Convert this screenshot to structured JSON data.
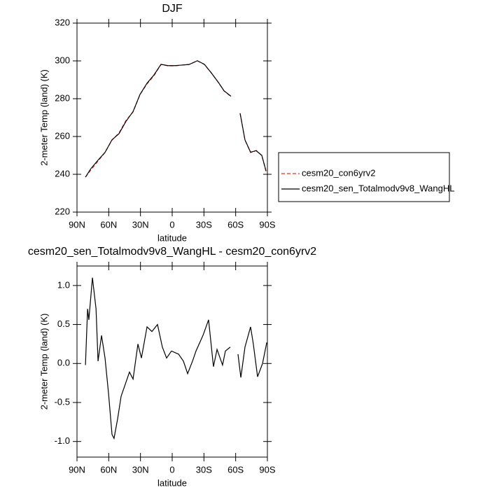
{
  "chart_data": [
    {
      "type": "line",
      "title": "DJF",
      "xlabel": "latitude",
      "ylabel": "2-meter Temp (land) (K)",
      "x": [
        82,
        77,
        70.1,
        63.5,
        57,
        50.3,
        43.7,
        37,
        30.4,
        23.8,
        17.2,
        10.6,
        4,
        -2.7,
        -9.3,
        -15.9,
        -23.8,
        -30.4,
        -37,
        -43.7,
        -49,
        -55.6,
        -60,
        -64.2,
        -68.8,
        -74.1,
        -79.4,
        -84.7,
        -88.7
      ],
      "series": [
        {
          "name": "cesm20_con6yrv2",
          "color": "#e0302a",
          "line_style": "dashed",
          "values": [
            238.5,
            242.2,
            247,
            251.5,
            258,
            261.9,
            268.5,
            273,
            282.2,
            287.8,
            292.2,
            298.1,
            297.4,
            297.4,
            297.8,
            298.1,
            300,
            298.1,
            293.7,
            288.5,
            284.1,
            281.1,
            null,
            272.2,
            258.1,
            251.5,
            252.6,
            250,
            241.5
          ]
        },
        {
          "name": "cesm20_sen_Totalmodv9v8_WangHL",
          "color": "#000000",
          "line_style": "solid",
          "values": [
            238.5,
            242.9,
            247.5,
            251.6,
            258.2,
            261.5,
            268,
            273.2,
            282.3,
            288.2,
            292.6,
            298.2,
            297.5,
            297.5,
            297.8,
            298.1,
            300.1,
            298.2,
            293.6,
            288.6,
            284.2,
            281.3,
            null,
            272.3,
            258.2,
            251.7,
            252.5,
            250,
            241.8
          ]
        }
      ],
      "xlim": [
        90,
        -90
      ],
      "xticks": [
        {
          "value": 90,
          "label": "90N"
        },
        {
          "value": 60,
          "label": "60N"
        },
        {
          "value": 30,
          "label": "30N"
        },
        0,
        {
          "value": -30,
          "label": "30S"
        },
        {
          "value": -60,
          "label": "60S"
        },
        {
          "value": -90,
          "label": "90S"
        }
      ],
      "ylim": [
        220,
        320
      ],
      "yticks": [
        220,
        240,
        260,
        280,
        300,
        320
      ],
      "legend": "right"
    },
    {
      "type": "line",
      "title": "cesm20_sen_Totalmodv9v8_WangHL - cesm20_con6yrv2",
      "xlabel": "latitude",
      "ylabel": "2-meter Temp (land) (K)",
      "x": [
        82,
        80,
        78.8,
        75.4,
        72,
        70.1,
        66.8,
        63.5,
        60.2,
        56.9,
        55,
        51.6,
        48.3,
        43.7,
        40.4,
        37,
        32.4,
        29.1,
        23.8,
        19.2,
        13.9,
        9.3,
        5.3,
        0.7,
        -6,
        -10.6,
        -14.6,
        -19.2,
        -22.5,
        -29.1,
        -34.4,
        -39,
        -42.4,
        -47.6,
        -50.3,
        -54.9,
        -59,
        -62.2,
        -64.9,
        -68.8,
        -74.1,
        -76.7,
        -80.7,
        -85.4,
        -89.4
      ],
      "series": [
        {
          "color": "#000000",
          "line_style": "solid",
          "values": [
            -0.02,
            0.7,
            0.56,
            1.1,
            0.7,
            0.03,
            0.36,
            0.07,
            -0.38,
            -0.91,
            -0.96,
            -0.71,
            -0.42,
            -0.24,
            -0.11,
            -0.2,
            0.25,
            0.07,
            0.47,
            0.41,
            0.5,
            0.21,
            0.07,
            0.16,
            0.12,
            0.03,
            -0.13,
            0.03,
            0.16,
            0.36,
            0.56,
            -0.04,
            0.18,
            -0.02,
            0.16,
            0.21,
            null,
            0.12,
            -0.18,
            0.21,
            0.47,
            0.25,
            -0.17,
            0.0,
            0.27
          ]
        }
      ],
      "xlim": [
        90,
        -90
      ],
      "xticks": [
        {
          "value": 90,
          "label": "90N"
        },
        {
          "value": 60,
          "label": "60N"
        },
        {
          "value": 30,
          "label": "30N"
        },
        0,
        {
          "value": -30,
          "label": "30S"
        },
        {
          "value": -60,
          "label": "60S"
        },
        {
          "value": -90,
          "label": "90S"
        }
      ],
      "ylim": [
        -1.2,
        1.25
      ],
      "yticks": [
        {
          "value": -1,
          "label": "-1.0"
        },
        -0.5,
        {
          "value": 0,
          "label": "0.0"
        },
        0.5,
        {
          "value": 1,
          "label": "1.0"
        }
      ]
    }
  ]
}
